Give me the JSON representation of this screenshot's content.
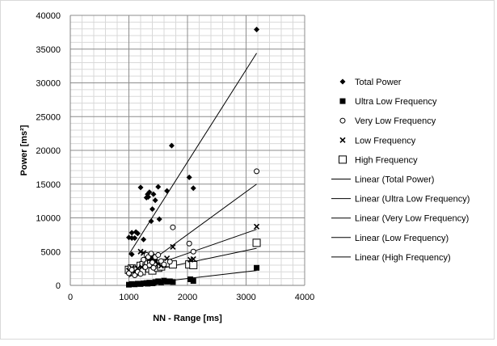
{
  "chart_data": {
    "type": "scatter",
    "xlabel": "NN - Range [ms]",
    "ylabel": "Power [ms²]",
    "xlim": [
      0,
      4000
    ],
    "ylim": [
      0,
      40000
    ],
    "x_ticks": [
      0,
      1000,
      2000,
      3000,
      4000
    ],
    "y_ticks": [
      0,
      5000,
      10000,
      15000,
      20000,
      25000,
      30000,
      35000,
      40000
    ],
    "x_tick_labels": [
      "0",
      "1000",
      "2000",
      "3000",
      "4000"
    ],
    "y_tick_labels": [
      "0",
      "5000",
      "10000",
      "15000",
      "20000",
      "25000",
      "30000",
      "35000",
      "40000"
    ],
    "grid": true,
    "legend_position": "right",
    "series": [
      {
        "name": "Total Power",
        "marker": "diamond",
        "x": [
          1000,
          1050,
          1100,
          1150,
          1050,
          1200,
          1250,
          1300,
          1320,
          1350,
          1380,
          1400,
          1420,
          1450,
          1330,
          1500,
          1520,
          1650,
          1730,
          2030,
          2100,
          3180,
          1050,
          1120
        ],
        "y": [
          7100,
          7800,
          7000,
          7700,
          4600,
          14500,
          6800,
          13000,
          13500,
          13800,
          9500,
          11300,
          13500,
          12600,
          13100,
          14600,
          9800,
          14000,
          20700,
          16000,
          14400,
          37900,
          7000,
          7900
        ]
      },
      {
        "name": "Ultra Low Frequency",
        "marker": "square",
        "x": [
          1000,
          1050,
          1100,
          1150,
          1200,
          1250,
          1300,
          1350,
          1400,
          1450,
          1500,
          1550,
          1600,
          1650,
          1700,
          1750,
          2050,
          2100,
          3180,
          1320,
          1420
        ],
        "y": [
          100,
          200,
          150,
          250,
          200,
          300,
          350,
          400,
          300,
          500,
          600,
          450,
          700,
          550,
          600,
          500,
          900,
          650,
          2600,
          250,
          350
        ]
      },
      {
        "name": "Very Low Frequency",
        "marker": "circle",
        "x": [
          1000,
          1050,
          1100,
          1150,
          1200,
          1250,
          1300,
          1330,
          1350,
          1380,
          1400,
          1450,
          1500,
          1550,
          1600,
          1700,
          1750,
          2030,
          2100,
          3180,
          1280,
          1420
        ],
        "y": [
          1800,
          2300,
          1500,
          2000,
          1700,
          3800,
          4500,
          4200,
          3000,
          4700,
          3400,
          4200,
          4500,
          3600,
          3100,
          3500,
          8600,
          6200,
          5000,
          16900,
          2700,
          2600
        ]
      },
      {
        "name": "Low Frequency",
        "marker": "x",
        "x": [
          1000,
          1050,
          1100,
          1150,
          1200,
          1250,
          1300,
          1330,
          1350,
          1380,
          1400,
          1450,
          1500,
          1550,
          1650,
          1750,
          2050,
          2100,
          3180,
          1220,
          1420
        ],
        "y": [
          2200,
          2600,
          2100,
          2500,
          5000,
          4800,
          4400,
          4200,
          3900,
          4000,
          4300,
          3500,
          3200,
          2900,
          4000,
          5700,
          3800,
          3900,
          8700,
          2700,
          4100
        ]
      },
      {
        "name": "High Frequency",
        "marker": "open-square",
        "x": [
          1000,
          1050,
          1100,
          1150,
          1200,
          1250,
          1300,
          1330,
          1350,
          1380,
          1400,
          1450,
          1500,
          1550,
          1650,
          1750,
          2030,
          2100,
          3180,
          1220,
          1420
        ],
        "y": [
          2300,
          2500,
          2000,
          2200,
          2900,
          3000,
          2700,
          3100,
          2500,
          3500,
          2200,
          3200,
          2600,
          2800,
          3300,
          3100,
          3100,
          3000,
          6300,
          2100,
          3100
        ]
      }
    ],
    "trendlines": [
      {
        "name": "Linear (Total Power)",
        "x": [
          1000,
          3180
        ],
        "y": [
          4600,
          34400
        ]
      },
      {
        "name": "Linear (Ultra Low Frequency)",
        "x": [
          1000,
          3180
        ],
        "y": [
          0,
          2200
        ]
      },
      {
        "name": "Linear (Very Low Frequency)",
        "x": [
          1000,
          3180
        ],
        "y": [
          1200,
          15000
        ]
      },
      {
        "name": "Linear (Low Frequency)",
        "x": [
          1000,
          3180
        ],
        "y": [
          1700,
          8300
        ]
      },
      {
        "name": "Linear (High Frequency)",
        "x": [
          1000,
          3180
        ],
        "y": [
          1500,
          5500
        ]
      }
    ]
  }
}
